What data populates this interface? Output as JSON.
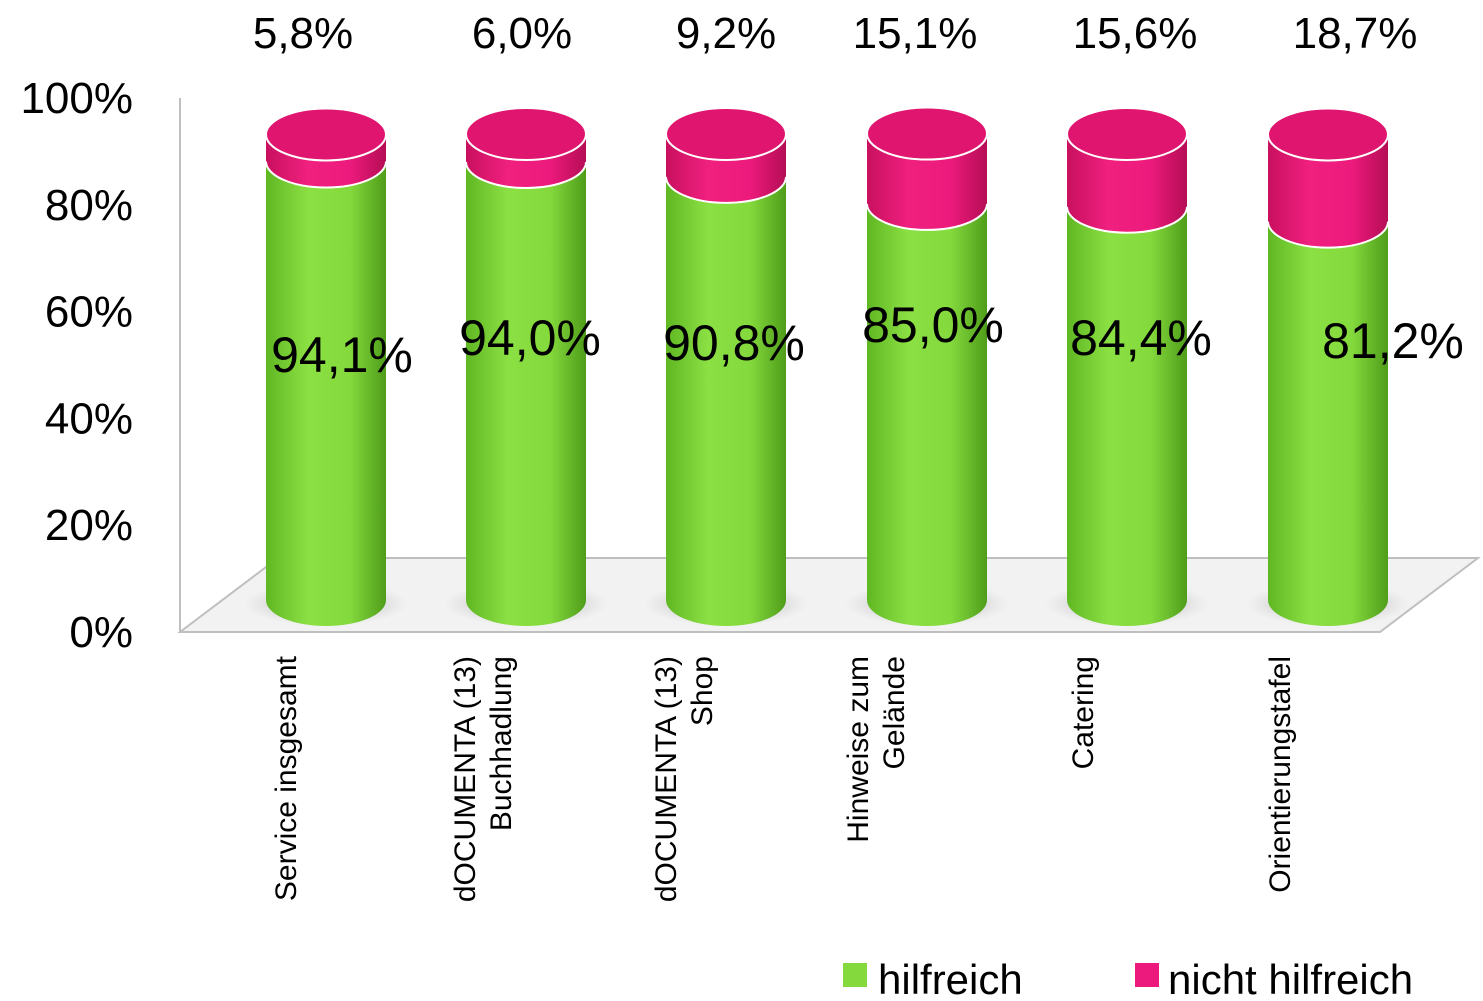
{
  "chart_data": {
    "type": "bar",
    "stacked": true,
    "categories": [
      [
        "Service insgesamt"
      ],
      [
        "dOCUMENTA (13)",
        "Buchhadlung"
      ],
      [
        "dOCUMENTA (13)",
        "Shop"
      ],
      [
        "Hinweise zum",
        "Gelände"
      ],
      [
        "Catering"
      ],
      [
        "Orientierungstafel"
      ]
    ],
    "series": [
      {
        "name": "hilfreich",
        "color": "#84d93c",
        "values": [
          94.1,
          94.0,
          90.8,
          85.0,
          84.4,
          81.2
        ],
        "labels": [
          "94,1%",
          "94,0%",
          "90,8%",
          "85,0%",
          "84,4%",
          "81,2%"
        ]
      },
      {
        "name": "nicht hilfreich",
        "color": "#ec1a7c",
        "values": [
          5.8,
          6.0,
          9.2,
          15.1,
          15.6,
          18.7
        ],
        "labels": [
          "5,8%",
          "6,0%",
          "9,2%",
          "15,1%",
          "15,6%",
          "18,7%"
        ]
      }
    ],
    "y_ticks": [
      "0%",
      "20%",
      "40%",
      "60%",
      "80%",
      "100%"
    ],
    "ylim": [
      0,
      100
    ],
    "legend": "bottom-right",
    "grid": false,
    "style": "3d-cylinder"
  }
}
